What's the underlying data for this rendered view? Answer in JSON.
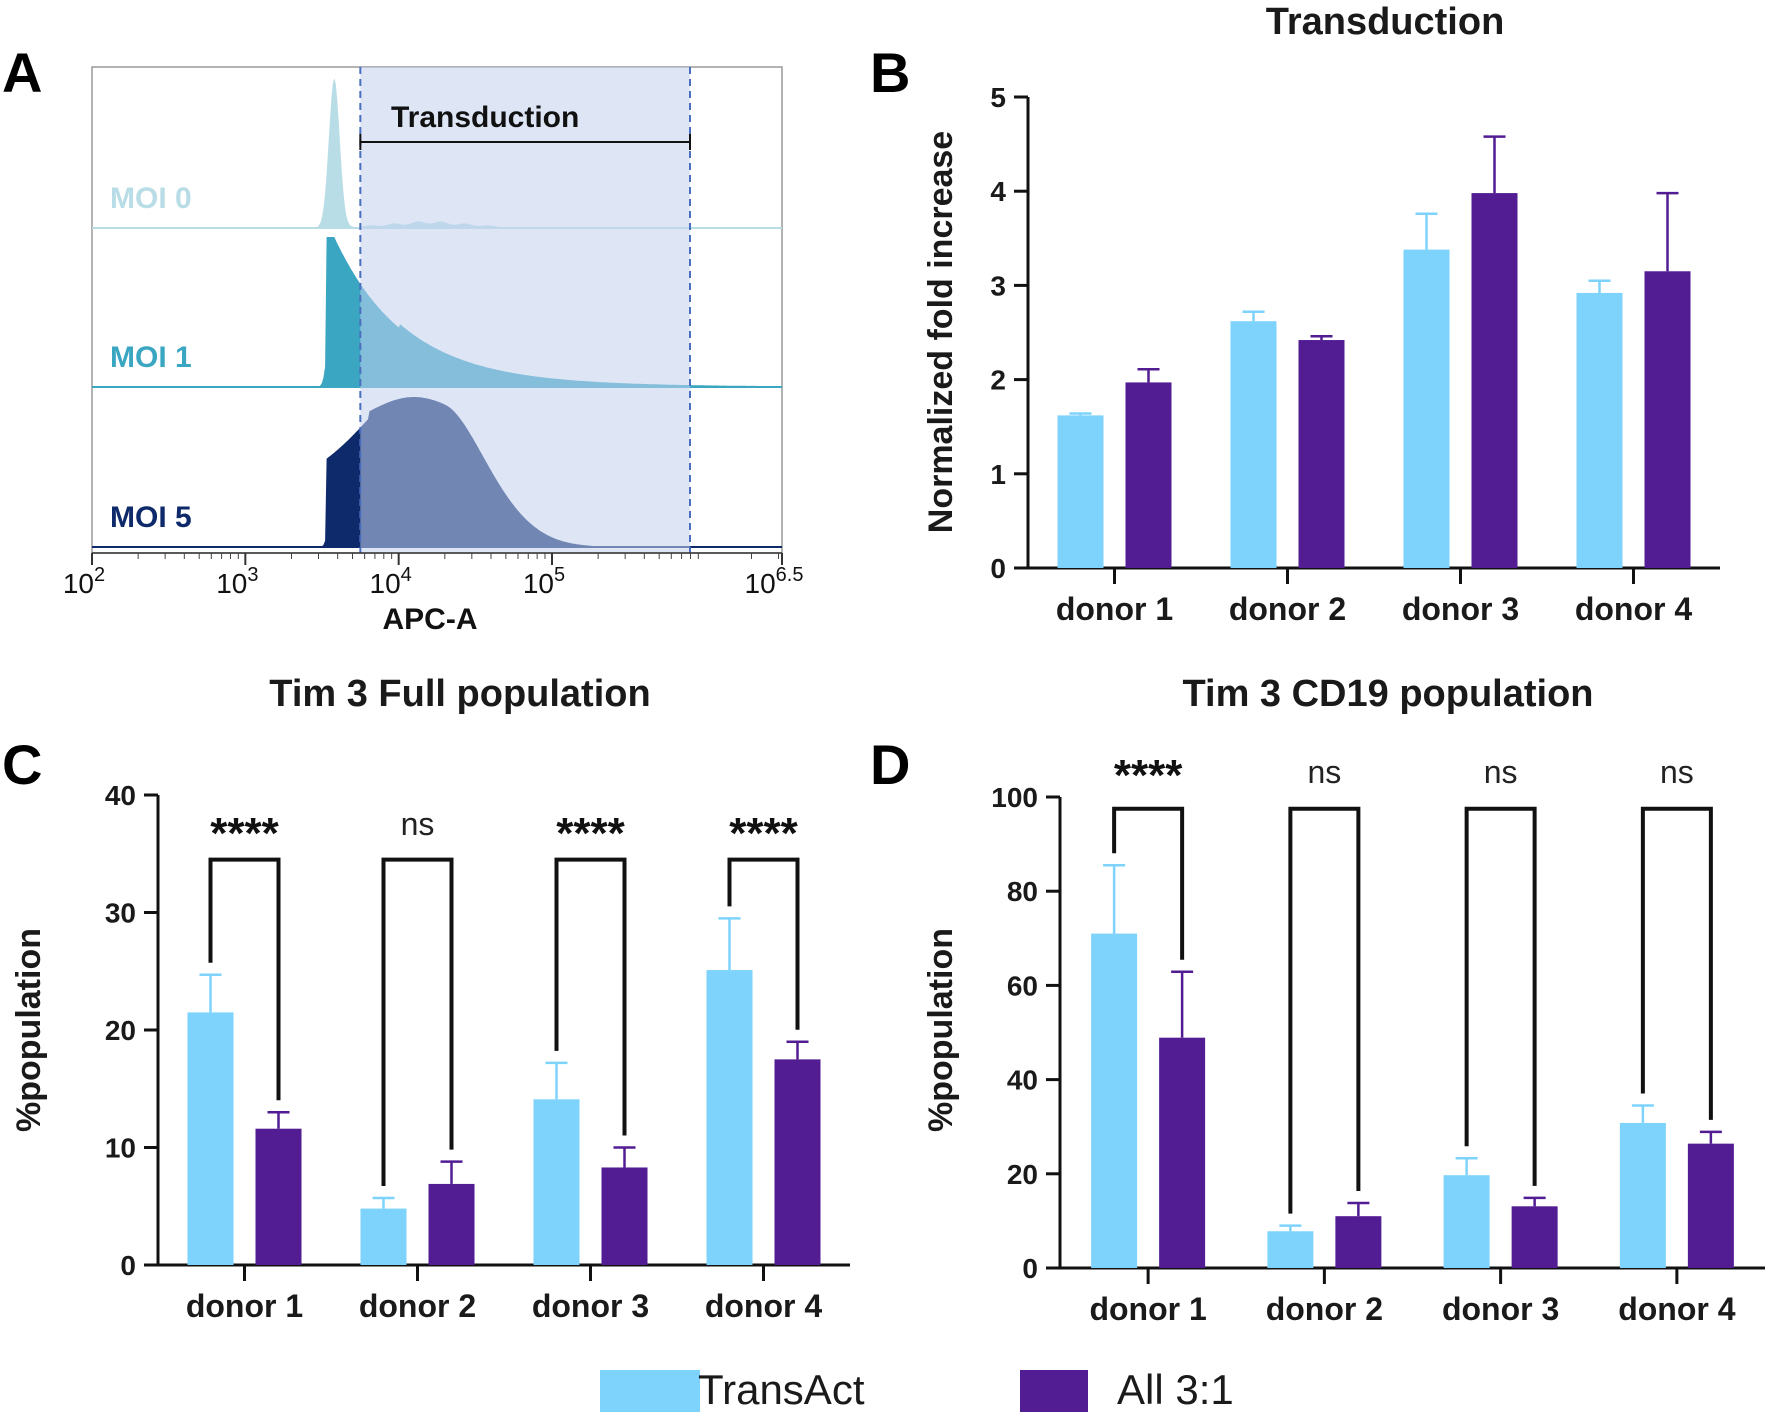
{
  "colors": {
    "transact": "#7dd3fb",
    "all31": "#521c93",
    "gate": "#c3d1ef",
    "gate_line": "#4a6fbf",
    "moi0": "#b9dde6",
    "moi1": "#3aa6c2",
    "moi1_gate": "#3a7ab8",
    "moi5": "#0e2a6b"
  },
  "panel_labels": {
    "a": "A",
    "b": "B",
    "c": "C",
    "d": "D"
  },
  "legend": {
    "transact": "TransAct",
    "all31": "All 3:1"
  },
  "chart_data": [
    {
      "id": "A",
      "type": "histogram",
      "xlabel": "APC-A",
      "x_ticks": [
        {
          "base": "10",
          "exp": "2"
        },
        {
          "base": "10",
          "exp": "3"
        },
        {
          "base": "10",
          "exp": "4"
        },
        {
          "base": "10",
          "exp": "5"
        },
        {
          "base": "10",
          "exp": "6.5"
        }
      ],
      "gate_label": "Transduction",
      "gate_range_log10": [
        3.75,
        5.9
      ],
      "series": [
        {
          "name": "MOI 0",
          "peak_log10": 3.6
        },
        {
          "name": "MOI 1",
          "peak_log10": 3.6
        },
        {
          "name": "MOI 5",
          "peak_log10": 4.1
        }
      ]
    },
    {
      "id": "B",
      "type": "bar",
      "title": "Transduction",
      "ylabel": "Normalized fold increase",
      "ylim": [
        0,
        5
      ],
      "yticks": [
        "0",
        "1",
        "2",
        "3",
        "4",
        "5"
      ],
      "categories": [
        "donor 1",
        "donor 2",
        "donor 3",
        "donor 4"
      ],
      "series": [
        {
          "name": "TransAct",
          "values": [
            1.62,
            2.62,
            3.38,
            2.92
          ],
          "errors": [
            0.02,
            0.1,
            0.38,
            0.13
          ]
        },
        {
          "name": "All 3:1",
          "values": [
            1.97,
            2.42,
            3.98,
            3.15
          ],
          "errors": [
            0.14,
            0.04,
            0.6,
            0.83
          ]
        }
      ],
      "significance": []
    },
    {
      "id": "C",
      "type": "bar",
      "title": "Tim 3 Full population",
      "ylabel": "%population",
      "ylim": [
        0,
        40
      ],
      "yticks": [
        "0",
        "10",
        "20",
        "30",
        "40"
      ],
      "categories": [
        "donor 1",
        "donor 2",
        "donor 3",
        "donor 4"
      ],
      "series": [
        {
          "name": "TransAct",
          "values": [
            21.5,
            4.8,
            14.1,
            25.1
          ],
          "errors": [
            3.2,
            0.9,
            3.1,
            4.4
          ]
        },
        {
          "name": "All 3:1",
          "values": [
            11.6,
            6.9,
            8.3,
            17.5
          ],
          "errors": [
            1.4,
            1.9,
            1.7,
            1.5
          ]
        }
      ],
      "significance": [
        "****",
        "ns",
        "****",
        "****"
      ],
      "bracket_top": 34.5
    },
    {
      "id": "D",
      "type": "bar",
      "title": "Tim 3 CD19 population",
      "ylabel": "%population",
      "ylim": [
        0,
        100
      ],
      "yticks": [
        "0",
        "20",
        "40",
        "60",
        "80",
        "100"
      ],
      "categories": [
        "donor 1",
        "donor 2",
        "donor 3",
        "donor 4"
      ],
      "series": [
        {
          "name": "TransAct",
          "values": [
            71,
            7.8,
            19.7,
            30.8
          ],
          "errors": [
            14.5,
            1.2,
            3.6,
            3.7
          ]
        },
        {
          "name": "All 3:1",
          "values": [
            48.9,
            11,
            13.1,
            26.4
          ],
          "errors": [
            14,
            2.8,
            1.8,
            2.5
          ]
        }
      ],
      "significance": [
        "****",
        "ns",
        "ns",
        "ns"
      ],
      "bracket_top": 97.5
    }
  ]
}
